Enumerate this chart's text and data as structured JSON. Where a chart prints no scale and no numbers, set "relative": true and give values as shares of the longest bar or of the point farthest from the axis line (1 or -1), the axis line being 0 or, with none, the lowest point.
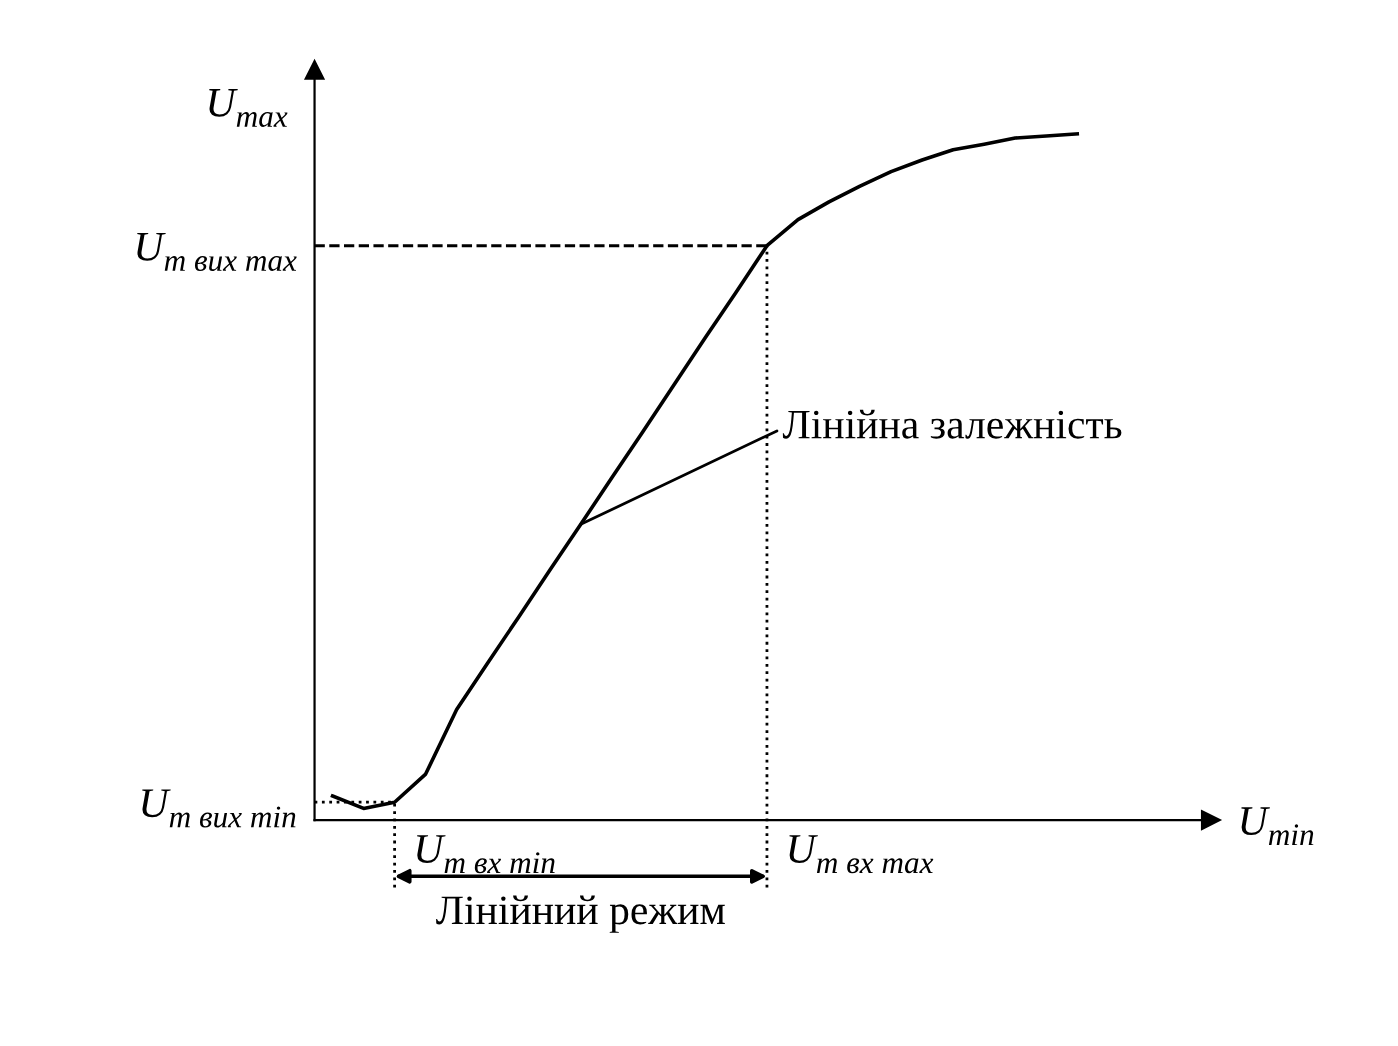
{
  "chart_data": {
    "type": "line",
    "relative": true,
    "xlabel": "U$_{min}$",
    "ylabel": "U$_{max}$",
    "categories": [
      null,
      null,
      null,
      null,
      null,
      null,
      null,
      null,
      null,
      null,
      null,
      null,
      null,
      null,
      null,
      null,
      null,
      null,
      null,
      null,
      null,
      null,
      null,
      null,
      null
    ],
    "series": [
      {
        "color": "#000000",
        "values": [
          0.035,
          0.017,
          0.026,
          0.067,
          0.161,
          0.229,
          0.296,
          0.364,
          0.431,
          0.499,
          0.566,
          0.634,
          0.702,
          0.769,
          0.837,
          0.875,
          0.901,
          0.924,
          0.945,
          0.962,
          0.977,
          0.985,
          0.994,
          0.997,
          1.0
        ]
      }
    ],
    "ref_lines": [
      {
        "axis": "y",
        "value": 0.837,
        "label": "U$_{m вих max}$",
        "line_style": "dashed"
      },
      {
        "axis": "y",
        "value": 0.026,
        "label": "U$_{m вих min}$",
        "line_style": "dotted"
      }
    ],
    "annotations": [
      "Лінійна залежність",
      "Лінійний режим",
      "U$_{m вх max}$",
      "U$_{m вх min}$"
    ],
    "grid": false,
    "legend": false,
    "marker": "none",
    "line_style": "solid"
  }
}
